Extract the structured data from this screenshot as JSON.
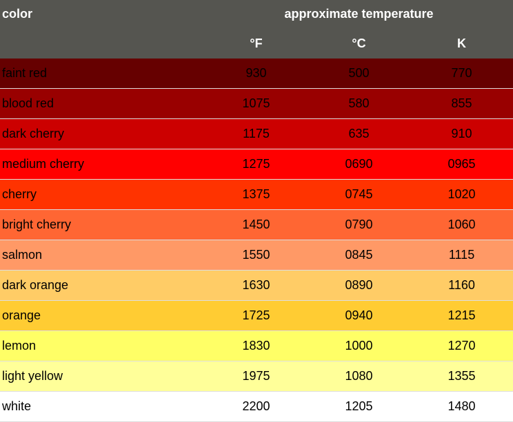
{
  "header": {
    "color": "color",
    "approx": "approximate temperature",
    "units": [
      "°F",
      "°C",
      "K"
    ]
  },
  "rows": [
    {
      "name": "faint red",
      "f": "930",
      "c": "500",
      "k": "770",
      "bg": "#660000"
    },
    {
      "name": "blood red",
      "f": "1075",
      "c": "580",
      "k": "855",
      "bg": "#990000"
    },
    {
      "name": "dark cherry",
      "f": "1175",
      "c": "635",
      "k": "910",
      "bg": "#CC0000"
    },
    {
      "name": "medium cherry",
      "f": "1275",
      "c": "0690",
      "k": "0965",
      "bg": "#FF0000"
    },
    {
      "name": "cherry",
      "f": "1375",
      "c": "0745",
      "k": "1020",
      "bg": "#FF3300"
    },
    {
      "name": "bright cherry",
      "f": "1450",
      "c": "0790",
      "k": "1060",
      "bg": "#FF6633"
    },
    {
      "name": "salmon",
      "f": "1550",
      "c": "0845",
      "k": "1115",
      "bg": "#FF9966"
    },
    {
      "name": "dark orange",
      "f": "1630",
      "c": "0890",
      "k": "1160",
      "bg": "#FFCC66"
    },
    {
      "name": "orange",
      "f": "1725",
      "c": "0940",
      "k": "1215",
      "bg": "#FFCC33"
    },
    {
      "name": "lemon",
      "f": "1830",
      "c": "1000",
      "k": "1270",
      "bg": "#FFFF66"
    },
    {
      "name": "light yellow",
      "f": "1975",
      "c": "1080",
      "k": "1355",
      "bg": "#FFFF99"
    },
    {
      "name": "white",
      "f": "2200",
      "c": "1205",
      "k": "1480",
      "bg": "#FFFFFF"
    }
  ]
}
